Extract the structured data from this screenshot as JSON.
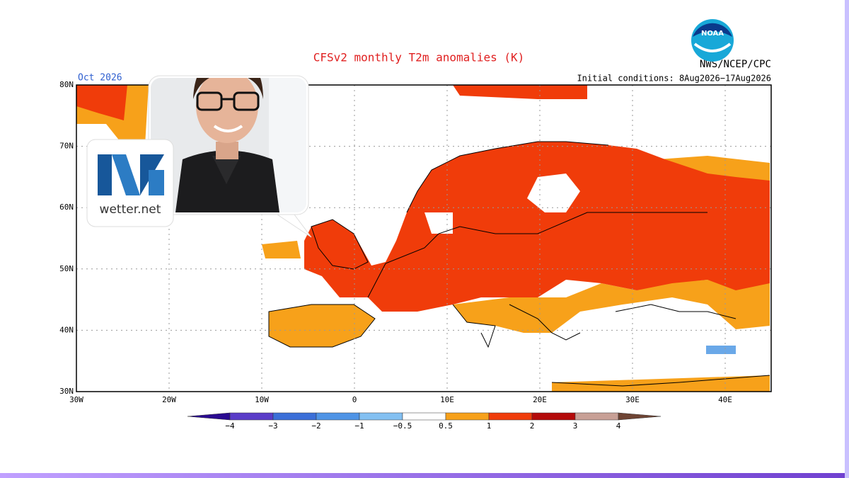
{
  "header": {
    "title": "CFSv2 monthly T2m anomalies (K)",
    "month": "Oct 2026",
    "agency": "NWS/NCEP/CPC",
    "initial_conditions": "Initial conditions: 8Aug2026−17Aug2026"
  },
  "map": {
    "lat_labels": [
      "80N",
      "70N",
      "60N",
      "50N",
      "40N",
      "30N"
    ],
    "lon_labels": [
      "30W",
      "20W",
      "10W",
      "0",
      "10E",
      "20E",
      "30E",
      "40E"
    ]
  },
  "colorbar": {
    "labels": [
      "−4",
      "−3",
      "−2",
      "−1",
      "−0.5",
      "0.5",
      "1",
      "2",
      "3",
      "4"
    ],
    "colors": [
      "#2a0a90",
      "#5a3cc8",
      "#3b6fd8",
      "#4f94e6",
      "#83c0f2",
      "#ffffff",
      "#f7a11a",
      "#f03c0a",
      "#b40a0a",
      "#c8a096",
      "#6e4434"
    ]
  },
  "logo": {
    "text": "wetter.net"
  }
}
